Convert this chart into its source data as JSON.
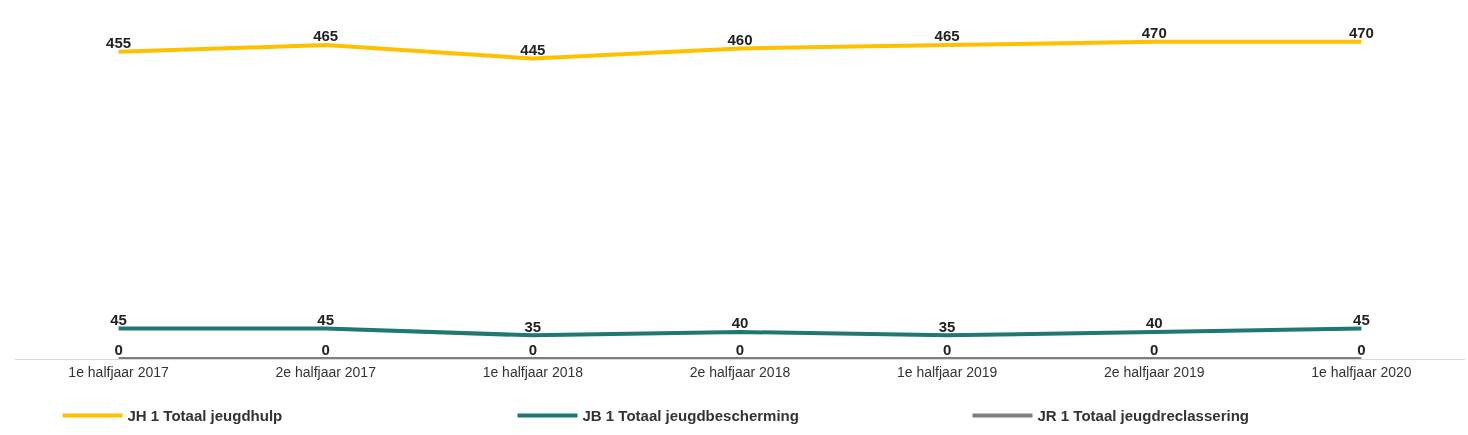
{
  "chart_data": {
    "type": "line",
    "categories": [
      "1e halfjaar 2017",
      "2e halfjaar 2017",
      "1e halfjaar 2018",
      "2e halfjaar 2018",
      "1e halfjaar 2019",
      "2e halfjaar 2019",
      "1e halfjaar 2020"
    ],
    "series": [
      {
        "name": "JH 1 Totaal jeugdhulp",
        "color": "#ffc000",
        "values": [
          455,
          465,
          445,
          460,
          465,
          470,
          470
        ]
      },
      {
        "name": "JB 1 Totaal jeugdbescherming",
        "color": "#1f7872",
        "values": [
          45,
          45,
          35,
          40,
          35,
          40,
          45
        ]
      },
      {
        "name": "JR 1 Totaal jeugdreclassering",
        "color": "#7f7f7f",
        "values": [
          0,
          0,
          0,
          0,
          0,
          0,
          0
        ]
      }
    ],
    "tick_labels": "x",
    "data_labels": true,
    "legend": "bottom",
    "marker": "none",
    "line_style": "solid"
  }
}
